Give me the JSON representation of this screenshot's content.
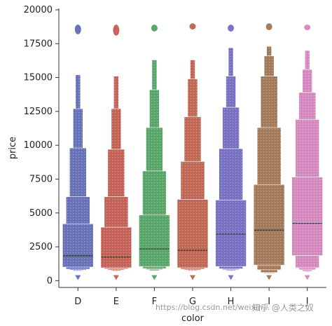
{
  "chart_data": {
    "type": "boxen",
    "xlabel": "color",
    "ylabel": "price",
    "ylim": [
      -500,
      20000
    ],
    "y_ticks": [
      0,
      2500,
      5000,
      7500,
      10000,
      12500,
      15000,
      17500,
      20000
    ],
    "y_tick_labels": [
      "0",
      "2500",
      "5000",
      "7500",
      "10000",
      "12500",
      "15000",
      "17500",
      "20000"
    ],
    "grid": false,
    "categories": [
      "D",
      "E",
      "F",
      "G",
      "H",
      "I",
      "J"
    ],
    "colors": [
      "#6a74b8",
      "#c8655a",
      "#5aa86c",
      "#c36a56",
      "#7b74c4",
      "#a57c5c",
      "#d88cc2"
    ],
    "series": [
      {
        "category": "D",
        "median": 1840,
        "boxes": [
          [
            1000,
            4200
          ],
          [
            850,
            6200
          ],
          [
            780,
            9800
          ],
          [
            720,
            12700
          ],
          [
            700,
            15200
          ]
        ],
        "outlier_range": [
          18300,
          18800
        ],
        "low_outlier": 250
      },
      {
        "category": "E",
        "median": 1740,
        "boxes": [
          [
            950,
            3950
          ],
          [
            870,
            6200
          ],
          [
            790,
            9700
          ],
          [
            720,
            12700
          ],
          [
            700,
            15100
          ]
        ],
        "outlier_range": [
          18200,
          18800
        ],
        "low_outlier": 250
      },
      {
        "category": "F",
        "median": 2340,
        "boxes": [
          [
            1050,
            4850
          ],
          [
            900,
            8100
          ],
          [
            820,
            11300
          ],
          [
            740,
            14100
          ],
          [
            720,
            16300
          ]
        ],
        "outlier_range": [
          18500,
          18800
        ],
        "low_outlier": 250
      },
      {
        "category": "G",
        "median": 2240,
        "boxes": [
          [
            950,
            6000
          ],
          [
            850,
            8800
          ],
          [
            780,
            12100
          ],
          [
            720,
            14900
          ],
          [
            700,
            16300
          ]
        ],
        "outlier_range": [
          18650,
          18900
        ],
        "low_outlier": 250
      },
      {
        "category": "H",
        "median": 3440,
        "boxes": [
          [
            1050,
            5950
          ],
          [
            880,
            9750
          ],
          [
            800,
            12800
          ],
          [
            740,
            15100
          ],
          [
            710,
            17200
          ]
        ],
        "outlier_range": [
          18500,
          18800
        ],
        "low_outlier": 250
      },
      {
        "category": "I",
        "median": 3730,
        "boxes": [
          [
            1150,
            7100
          ],
          [
            800,
            11300
          ],
          [
            600,
            15100
          ],
          [
            550,
            16600
          ],
          [
            520,
            17300
          ]
        ],
        "outlier_range": [
          18600,
          18900
        ],
        "low_outlier": 250
      },
      {
        "category": "J",
        "median": 4230,
        "boxes": [
          [
            1850,
            7650
          ],
          [
            950,
            11900
          ],
          [
            800,
            13900
          ],
          [
            700,
            15600
          ],
          [
            650,
            17000
          ]
        ],
        "outlier_range": [
          18600,
          18800
        ],
        "low_outlier": 250
      }
    ]
  },
  "watermark": {
    "url": "https://blog.csdn.net/weixin...",
    "brand": "知乎 @人类之奴"
  }
}
